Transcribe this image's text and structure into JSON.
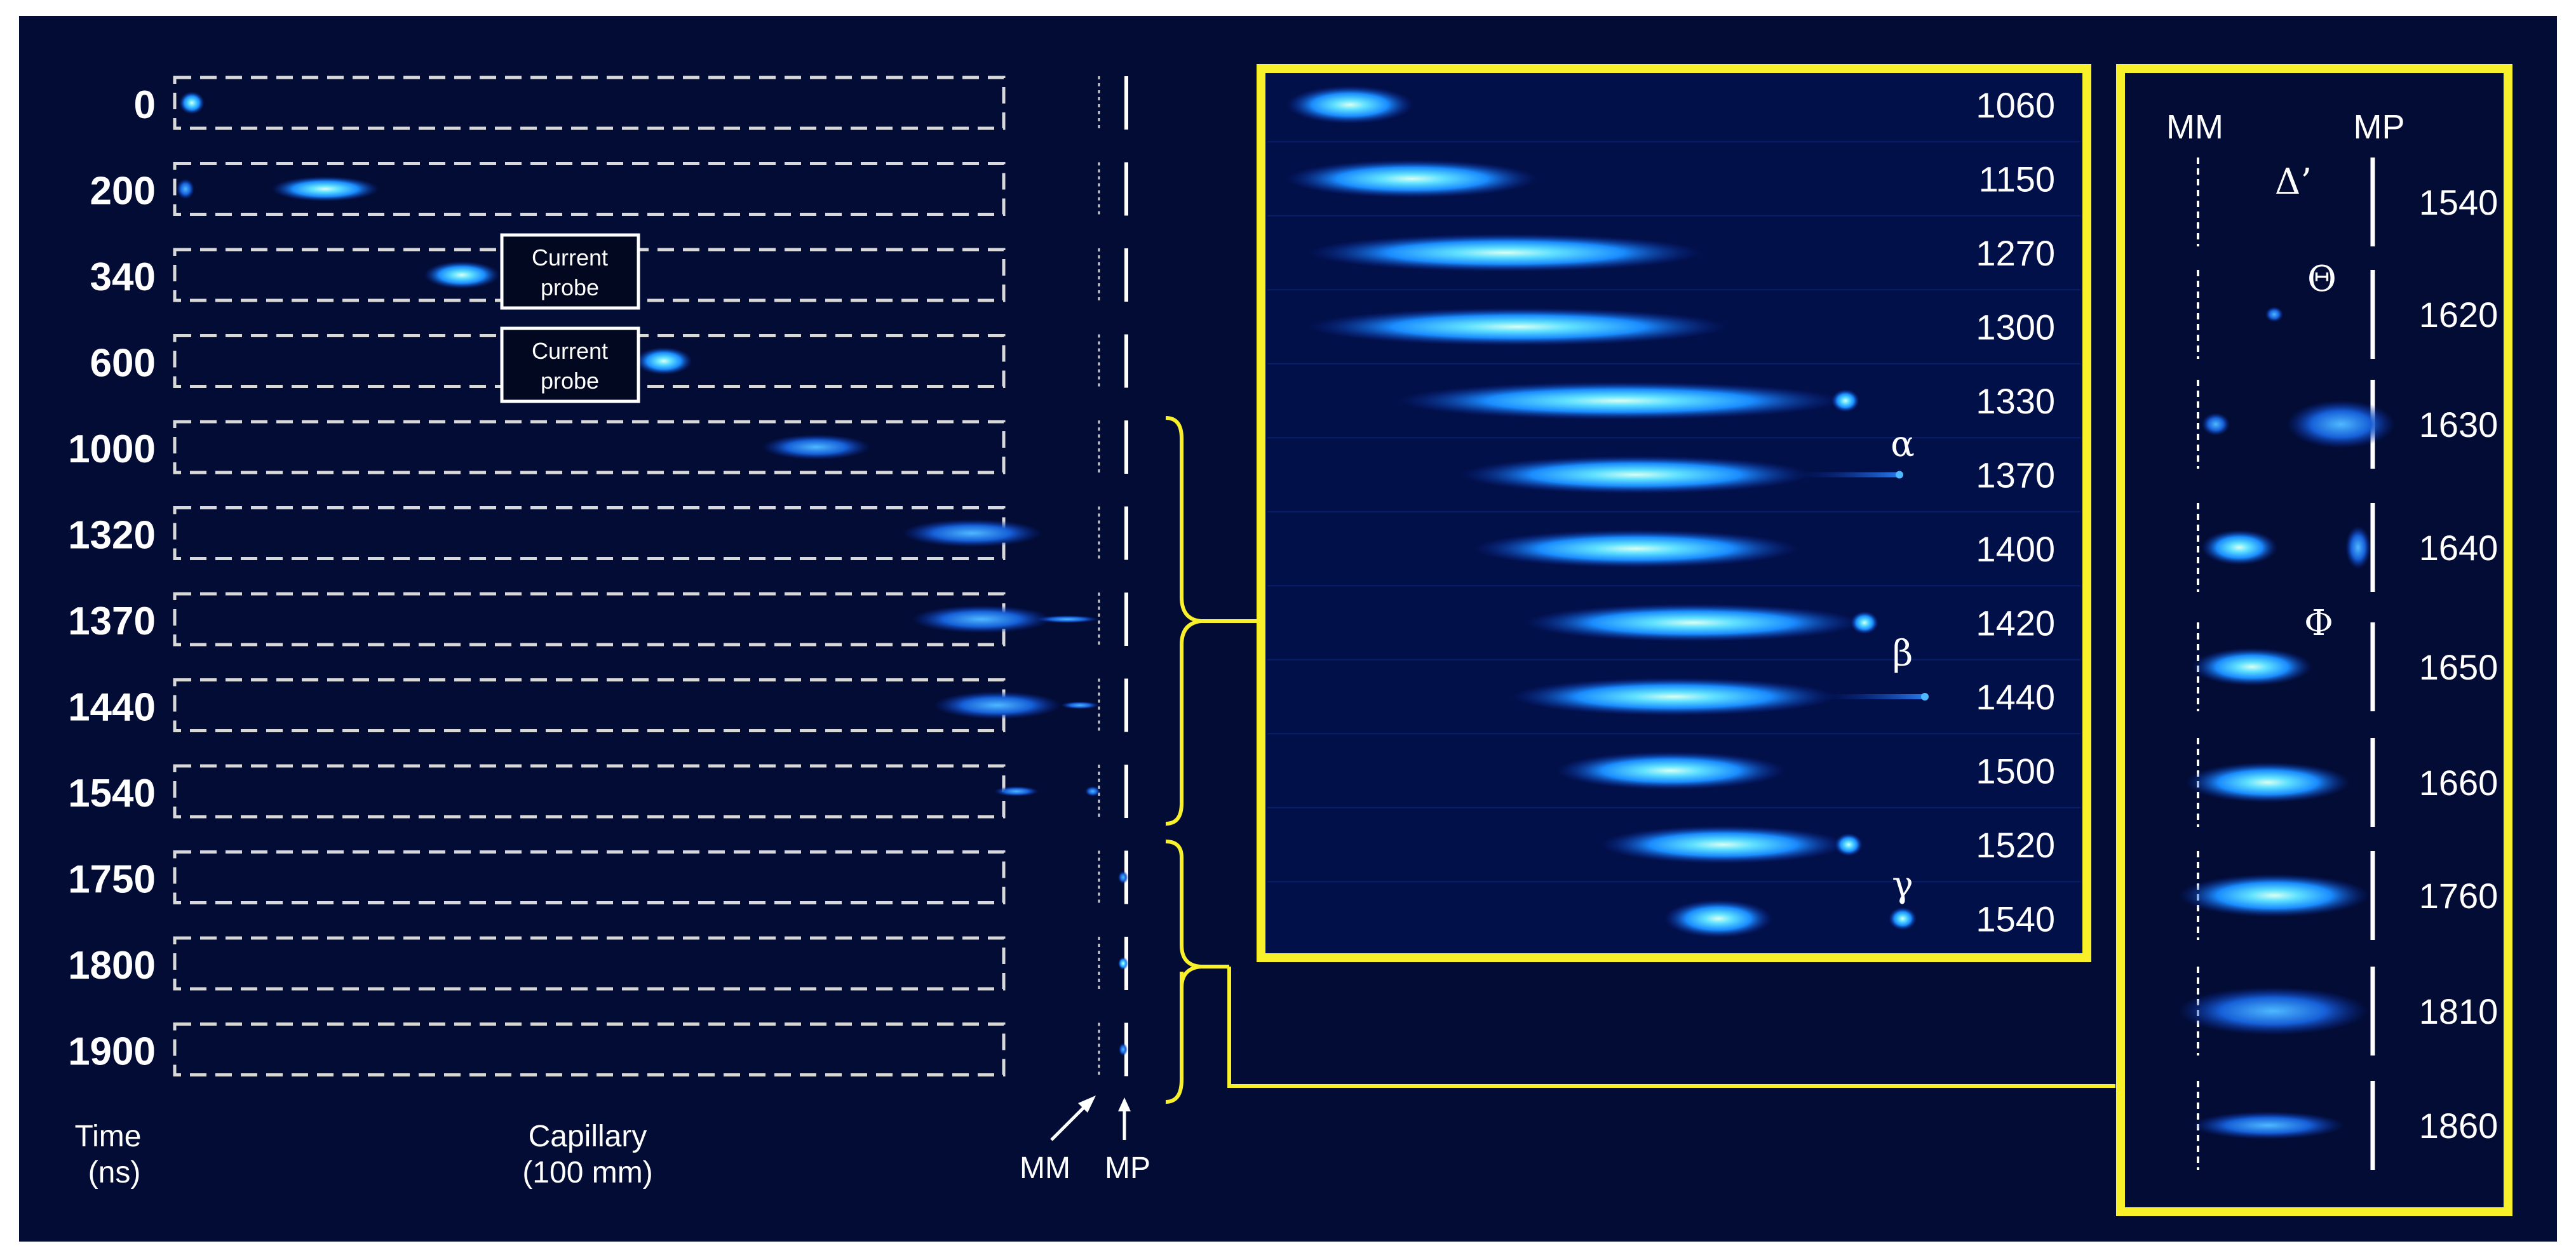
{
  "left_panel": {
    "rows": [
      {
        "time": "0"
      },
      {
        "time": "200"
      },
      {
        "time": "340"
      },
      {
        "time": "600"
      },
      {
        "time": "1000"
      },
      {
        "time": "1320"
      },
      {
        "time": "1370"
      },
      {
        "time": "1440"
      },
      {
        "time": "1540"
      },
      {
        "time": "1750"
      },
      {
        "time": "1800"
      },
      {
        "time": "1900"
      }
    ],
    "probe_labels": [
      {
        "line1": "Current",
        "line2": "probe"
      },
      {
        "line1": "Current",
        "line2": "probe"
      }
    ],
    "time_label_line1": "Time",
    "time_label_line2": "(ns)",
    "capillary_label_line1": "Capillary",
    "capillary_label_line2": "(100 mm)",
    "mm_label": "MM",
    "mp_label": "MP"
  },
  "middle_panel": {
    "times": [
      "1060",
      "1150",
      "1270",
      "1300",
      "1330",
      "1370",
      "1400",
      "1420",
      "1440",
      "1500",
      "1520",
      "1540"
    ],
    "greek": [
      "α",
      "β",
      "γ"
    ]
  },
  "right_panel": {
    "mm_label": "MM",
    "mp_label": "MP",
    "times": [
      "1540",
      "1620",
      "1630",
      "1640",
      "1650",
      "1660",
      "1760",
      "1810",
      "1860"
    ],
    "greek": [
      "Δ’",
      "Θ",
      "Φ"
    ]
  },
  "colors": {
    "background": "#020c35",
    "frame": "#f7f02a",
    "text": "#ffffff",
    "dash": "#d8d8d8",
    "plasma_core": "#c8fff0",
    "plasma_mid": "#1ea6ff",
    "plasma_edge": "#0a2a9e"
  }
}
